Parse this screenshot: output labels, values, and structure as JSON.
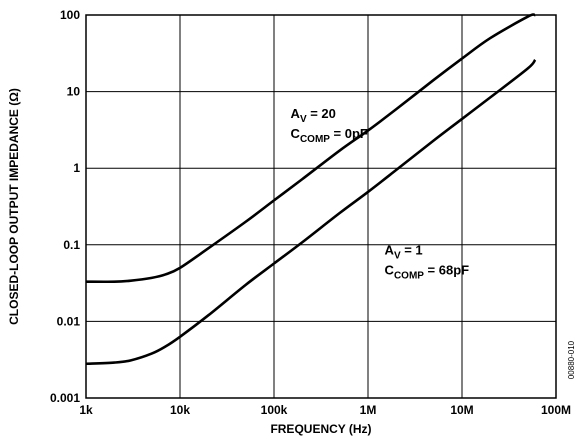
{
  "chart_data": {
    "type": "line",
    "xlabel": "FREQUENCY (Hz)",
    "ylabel": "CLOSED-LOOP OUTPUT IMPEDANCE (Ω)",
    "x_scale": "log",
    "y_scale": "log",
    "xlim": [
      1000,
      100000000
    ],
    "ylim": [
      0.001,
      100
    ],
    "grid": true,
    "x_ticks": [
      1000,
      10000,
      100000,
      1000000,
      10000000,
      100000000
    ],
    "x_tick_labels": [
      "1k",
      "10k",
      "100k",
      "1M",
      "10M",
      "100M"
    ],
    "y_ticks": [
      0.001,
      0.01,
      0.1,
      1,
      10,
      100
    ],
    "y_tick_labels": [
      "0.001",
      "0.01",
      "0.1",
      "1",
      "10",
      "100"
    ],
    "series": [
      {
        "x": [
          1000,
          2000,
          3000,
          5000,
          7000,
          10000,
          20000,
          50000,
          100000,
          200000,
          500000,
          1000000,
          2000000,
          5000000,
          10000000,
          20000000,
          50000000,
          60000000
        ],
        "y": [
          0.033,
          0.033,
          0.034,
          0.037,
          0.041,
          0.05,
          0.09,
          0.2,
          0.38,
          0.72,
          1.7,
          3.1,
          5.9,
          14.2,
          27,
          50,
          95,
          100
        ]
      },
      {
        "x": [
          1000,
          2000,
          3000,
          5000,
          7000,
          10000,
          20000,
          50000,
          100000,
          200000,
          500000,
          1000000,
          2000000,
          5000000,
          10000000,
          20000000,
          50000000,
          60000000
        ],
        "y": [
          0.0028,
          0.0029,
          0.0031,
          0.0038,
          0.0047,
          0.0063,
          0.012,
          0.03,
          0.057,
          0.108,
          0.26,
          0.49,
          0.95,
          2.3,
          4.4,
          8.4,
          20,
          26
        ]
      }
    ],
    "annotations": [
      {
        "main": "A",
        "sub": "V",
        "rest": " = 20",
        "main2": "C",
        "sub2": "COMP",
        "rest2": " = 0pF",
        "at": [
          150000,
          4.5
        ]
      },
      {
        "main": "A",
        "sub": "V",
        "rest": " = 1",
        "main2": "C",
        "sub2": "COMP",
        "rest2": " = 68pF",
        "at": [
          1500000,
          0.075
        ]
      }
    ],
    "figure_id": "00880-010"
  }
}
